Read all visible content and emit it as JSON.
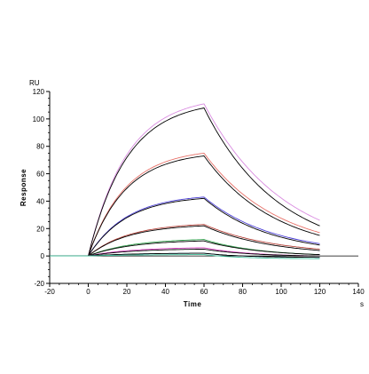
{
  "chart_data": {
    "type": "line",
    "title": "",
    "xlabel": "Time",
    "ylabel": "Response",
    "x_unit": "s",
    "y_unit": "RU",
    "xlim": [
      -20,
      140
    ],
    "ylim": [
      -20,
      120
    ],
    "x_ticks": [
      -20,
      0,
      20,
      40,
      60,
      80,
      100,
      120,
      140
    ],
    "y_ticks": [
      -20,
      0,
      20,
      40,
      60,
      80,
      100,
      120
    ],
    "grid": false,
    "legend": "none",
    "association_end": 60,
    "dissociation_end": 120,
    "series": [
      {
        "color": "#d98be0",
        "plateau": 111,
        "end": 26,
        "ka": 0.05,
        "kd": 0.024
      },
      {
        "color": "#000000",
        "plateau": 108,
        "end": 22,
        "ka": 0.05,
        "kd": 0.026
      },
      {
        "color": "#e8736b",
        "plateau": 75,
        "end": 17,
        "ka": 0.052,
        "kd": 0.026
      },
      {
        "color": "#000000",
        "plateau": 73,
        "end": 15,
        "ka": 0.052,
        "kd": 0.027
      },
      {
        "color": "#4b3fd6",
        "plateau": 43,
        "end": 9,
        "ka": 0.05,
        "kd": 0.028
      },
      {
        "color": "#000000",
        "plateau": 42,
        "end": 8,
        "ka": 0.05,
        "kd": 0.029
      },
      {
        "color": "#b5423a",
        "plateau": 23,
        "end": 5,
        "ka": 0.048,
        "kd": 0.028
      },
      {
        "color": "#000000",
        "plateau": 22,
        "end": 4,
        "ka": 0.048,
        "kd": 0.029
      },
      {
        "color": "#2f9e4a",
        "plateau": 12,
        "end": 1,
        "ka": 0.045,
        "kd": 0.035
      },
      {
        "color": "#000000",
        "plateau": 11,
        "end": 1,
        "ka": 0.045,
        "kd": 0.035
      },
      {
        "color": "#d63fbf",
        "plateau": 6,
        "end": 0,
        "ka": 0.045,
        "kd": 0.04
      },
      {
        "color": "#000000",
        "plateau": 5,
        "end": 0,
        "ka": 0.045,
        "kd": 0.04
      },
      {
        "color": "#35a7c9",
        "plateau": 2,
        "end": -1,
        "ka": 0.045,
        "kd": 0.05
      },
      {
        "color": "#000000",
        "plateau": 2,
        "end": -1,
        "ka": 0.045,
        "kd": 0.05
      },
      {
        "color": "#3fbf9a",
        "plateau": 1,
        "end": -2,
        "ka": 0.045,
        "kd": 0.05
      }
    ]
  }
}
